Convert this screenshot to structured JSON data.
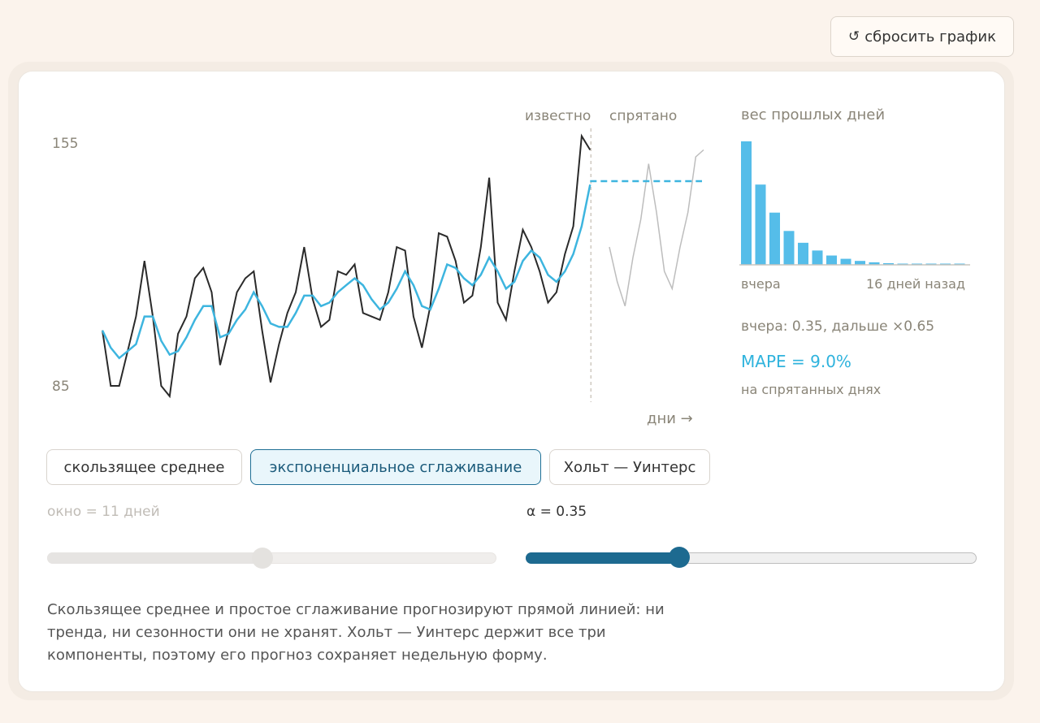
{
  "reset_button": {
    "label": "сбросить график",
    "icon": "reset-arrow-icon"
  },
  "chart": {
    "label_known": "известно",
    "label_hidden": "спрятано",
    "y_max_label": "155",
    "y_min_label": "85",
    "days_label": "дни →"
  },
  "weights_panel": {
    "title": "вес прошлых дней",
    "left_label": "вчера",
    "right_label": "16 дней назад",
    "decay_text": "вчера: 0.35, дальше ×0.65",
    "mape_text": "MAPE = 9.0%",
    "mape_sub": "на спрятанных днях"
  },
  "tabs": [
    {
      "label": "скользящее среднее",
      "active": false
    },
    {
      "label": "экспоненциальное сглаживание",
      "active": true
    },
    {
      "label": "Хольт — Уинтерс",
      "active": false
    }
  ],
  "params": {
    "window_label": "окно = 11 дней",
    "window_value_fraction": 0.48,
    "alpha_label": "α = 0.35",
    "alpha_value_fraction": 0.34
  },
  "description": "Скользящее среднее и простое сглаживание прогнозируют прямой линией: ни тренда, ни сезонности они не хранят. Хольт — Уинтерс держит все три компоненты, поэтому его прогноз сохраняет недельную форму.",
  "colors": {
    "actual": "#2a2a2a",
    "smoothed": "#3db5df",
    "hidden": "#bdbdbd",
    "bars": "#55bde9",
    "accent": "#1d6a90"
  },
  "chart_data": [
    {
      "type": "line",
      "ylim": [
        85,
        155
      ],
      "series": [
        {
          "values": [
            101,
            85,
            85,
            95,
            105,
            121,
            105,
            85,
            82,
            100,
            105,
            116,
            119,
            112,
            91,
            101,
            112,
            116,
            118,
            101,
            86,
            97,
            106,
            112,
            125,
            110,
            102,
            104,
            118,
            117,
            120,
            106,
            105,
            104,
            112,
            125,
            124,
            105,
            96,
            108,
            129,
            128,
            121,
            109,
            111,
            125,
            145,
            109,
            104,
            118,
            130,
            125,
            118,
            109,
            112,
            123,
            131,
            157,
            153
          ],
          "name": ""
        },
        {
          "values": [
            101,
            96,
            93,
            95,
            97,
            105,
            105,
            98,
            94,
            95,
            99,
            104,
            108,
            108,
            99,
            100,
            104,
            107,
            112,
            108,
            103,
            102,
            102,
            106,
            111,
            111,
            108,
            109,
            112,
            114,
            116,
            114,
            110,
            107,
            109,
            113,
            118,
            114,
            108,
            107,
            113,
            120,
            119,
            116,
            114,
            117,
            122,
            118,
            113,
            115,
            121,
            124,
            122,
            117,
            115,
            118,
            123,
            131,
            143
          ],
          "name": ""
        }
      ],
      "forecast": {
        "values": [
          144,
          144,
          144,
          144,
          144,
          144,
          144,
          144,
          144,
          144,
          144,
          144,
          144,
          144,
          144,
          144,
          144,
          144,
          144,
          144,
          144,
          144
        ]
      },
      "hidden_actual": {
        "values": [
          125,
          115,
          108,
          122,
          133,
          149,
          135,
          118,
          113,
          125,
          135,
          151,
          153
        ]
      }
    },
    {
      "type": "bar",
      "title": "вес прошлых дней",
      "values": [
        0.35,
        0.2275,
        0.148,
        0.096,
        0.0625,
        0.0406,
        0.0264,
        0.0171,
        0.0111,
        0.0072,
        0.0047,
        0.0031,
        0.002,
        0.0013,
        0.0008,
        0.0005
      ]
    }
  ]
}
